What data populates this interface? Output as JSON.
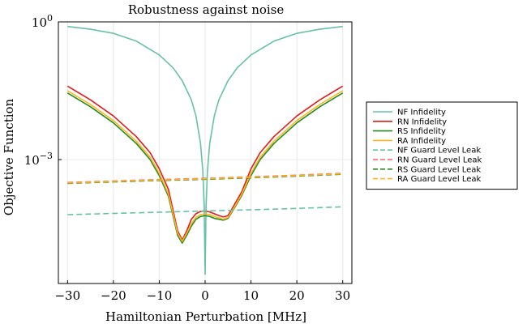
{
  "chart_data": {
    "type": "line",
    "title": "Robustness against noise",
    "xlabel": "Hamiltonian Perturbation [MHz]",
    "ylabel": "Objective Function",
    "xlim": [
      -32,
      32
    ],
    "ylim_log10": [
      -5.7,
      0.0
    ],
    "y_scale": "log10",
    "grid": true,
    "legend_position": "right",
    "x_ticks": [
      -30,
      -20,
      -10,
      0,
      10,
      20,
      30
    ],
    "x_tick_labels": [
      "−30",
      "−20",
      "−10",
      "0",
      "10",
      "20",
      "30"
    ],
    "y_ticks_log10": [
      0,
      -3
    ],
    "y_tick_bases": [
      "10",
      "10"
    ],
    "y_tick_exponents": [
      "0",
      "−3"
    ],
    "series": [
      {
        "name": "NF Infidelity",
        "color": "#66c2a5",
        "style": "solid",
        "x": [
          -30,
          -25,
          -20,
          -15,
          -10,
          -7,
          -5,
          -3,
          -2,
          -1,
          -0.5,
          -0.2,
          0,
          0.2,
          0.5,
          1,
          2,
          3,
          5,
          7,
          10,
          15,
          20,
          25,
          30
        ],
        "y_log10": [
          -0.1,
          -0.16,
          -0.25,
          -0.42,
          -0.72,
          -1.0,
          -1.28,
          -1.7,
          -2.05,
          -2.65,
          -3.25,
          -4.05,
          -5.5,
          -4.05,
          -3.25,
          -2.65,
          -2.05,
          -1.7,
          -1.28,
          -1.0,
          -0.72,
          -0.42,
          -0.25,
          -0.16,
          -0.1
        ]
      },
      {
        "name": "RN Infidelity",
        "color": "#e41a1c",
        "style": "solid",
        "x": [
          -30,
          -25,
          -20,
          -15,
          -12,
          -10,
          -8,
          -6,
          -5,
          -4,
          -3,
          -2,
          -1,
          0,
          1,
          2,
          3,
          4,
          5,
          6,
          8,
          10,
          12,
          15,
          20,
          25,
          30
        ],
        "y_log10": [
          -1.4,
          -1.7,
          -2.05,
          -2.5,
          -2.85,
          -3.2,
          -3.65,
          -4.55,
          -4.75,
          -4.55,
          -4.3,
          -4.18,
          -4.13,
          -4.12,
          -4.14,
          -4.18,
          -4.22,
          -4.25,
          -4.22,
          -4.05,
          -3.7,
          -3.2,
          -2.85,
          -2.5,
          -2.05,
          -1.7,
          -1.4
        ]
      },
      {
        "name": "RS Infidelity",
        "color": "#238b22",
        "style": "solid",
        "x": [
          -30,
          -25,
          -20,
          -15,
          -12,
          -10,
          -8,
          -6,
          -5,
          -4,
          -3,
          -2,
          -1,
          0,
          1,
          2,
          3,
          4,
          5,
          6,
          8,
          10,
          12,
          15,
          20,
          25,
          30
        ],
        "y_log10": [
          -1.55,
          -1.85,
          -2.2,
          -2.65,
          -3.0,
          -3.35,
          -3.8,
          -4.65,
          -4.82,
          -4.65,
          -4.45,
          -4.3,
          -4.24,
          -4.22,
          -4.24,
          -4.28,
          -4.3,
          -4.32,
          -4.28,
          -4.12,
          -3.78,
          -3.35,
          -3.0,
          -2.65,
          -2.2,
          -1.85,
          -1.55
        ]
      },
      {
        "name": "RA Infidelity",
        "color": "#ffb61e",
        "style": "solid",
        "x": [
          -30,
          -25,
          -20,
          -15,
          -12,
          -10,
          -8,
          -6,
          -5,
          -4,
          -3,
          -2,
          -1,
          0,
          1,
          2,
          3,
          4,
          5,
          6,
          8,
          10,
          12,
          15,
          20,
          25,
          30
        ],
        "y_log10": [
          -1.5,
          -1.8,
          -2.15,
          -2.6,
          -2.95,
          -3.3,
          -3.75,
          -4.6,
          -4.78,
          -4.6,
          -4.4,
          -4.26,
          -4.2,
          -4.18,
          -4.2,
          -4.24,
          -4.27,
          -4.3,
          -4.26,
          -4.1,
          -3.75,
          -3.3,
          -2.95,
          -2.6,
          -2.15,
          -1.8,
          -1.5
        ]
      },
      {
        "name": "NF Guard Level Leak",
        "color": "#66c2a5",
        "style": "dashed",
        "x": [
          -30,
          -15,
          0,
          15,
          30
        ],
        "y_log10": [
          -4.2,
          -4.16,
          -4.12,
          -4.08,
          -4.03
        ]
      },
      {
        "name": "RN Guard Level Leak",
        "color": "#ff6060",
        "style": "dashed",
        "x": [
          -30,
          -15,
          0,
          15,
          30
        ],
        "y_log10": [
          -3.5,
          -3.45,
          -3.41,
          -3.36,
          -3.3
        ]
      },
      {
        "name": "RS Guard Level Leak",
        "color": "#238b22",
        "style": "dashed",
        "x": [
          -30,
          -15,
          0,
          15,
          30
        ],
        "y_log10": [
          -3.52,
          -3.47,
          -3.43,
          -3.38,
          -3.32
        ]
      },
      {
        "name": "RA Guard Level Leak",
        "color": "#ffb61e",
        "style": "dashed",
        "x": [
          -30,
          -15,
          0,
          15,
          30
        ],
        "y_log10": [
          -3.51,
          -3.46,
          -3.42,
          -3.37,
          -3.31
        ]
      }
    ]
  }
}
